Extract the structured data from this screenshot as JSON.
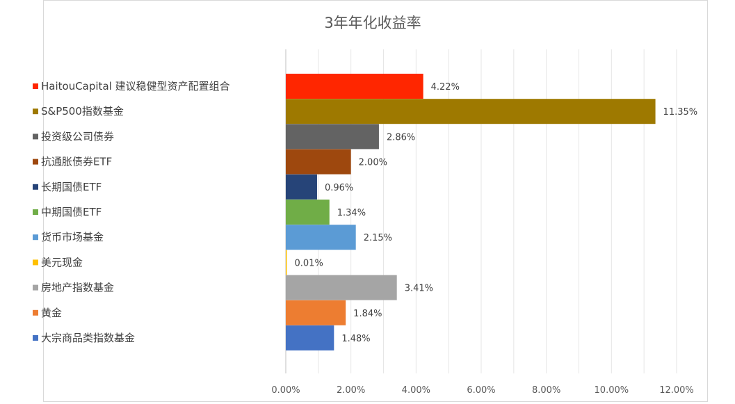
{
  "chart_data": {
    "type": "bar",
    "orientation": "horizontal",
    "title": "3年年化收益率",
    "xlabel": "",
    "ylabel": "",
    "xlim": [
      0,
      12
    ],
    "tick_step": 1,
    "tick_labels": [
      "0.00%",
      "2.00%",
      "4.00%",
      "6.00%",
      "8.00%",
      "10.00%",
      "12.00%"
    ],
    "grid": "vertical",
    "legend": "left",
    "categories": [
      "HaitouCapital 建议稳健型资产配置组合",
      "S&P500指数基金",
      "投资级公司债券",
      "抗通胀债券ETF",
      "长期国债ETF",
      "中期国债ETF",
      "货币市场基金",
      "美元现金",
      "房地产指数基金",
      "黄金",
      "大宗商品类指数基金"
    ],
    "values": [
      4.22,
      11.35,
      2.86,
      2.0,
      0.96,
      1.34,
      2.15,
      0.01,
      3.41,
      1.84,
      1.48
    ],
    "value_labels": [
      "4.22%",
      "11.35%",
      "2.86%",
      "2.00%",
      "0.96%",
      "1.34%",
      "2.15%",
      "0.01%",
      "3.41%",
      "1.84%",
      "1.48%"
    ],
    "colors": [
      "#ff2600",
      "#9e7900",
      "#636363",
      "#9e480e",
      "#264478",
      "#70ad47",
      "#5b9bd5",
      "#ffc000",
      "#a5a5a5",
      "#ed7d31",
      "#4472c4"
    ]
  }
}
